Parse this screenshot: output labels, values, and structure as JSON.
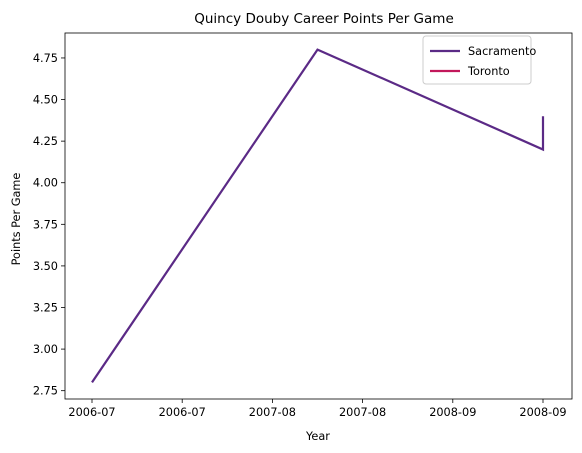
{
  "chart_data": {
    "type": "line",
    "title": "Quincy Douby Career Points Per Game",
    "xlabel": "Year",
    "ylabel": "Points Per Game",
    "x_tick_labels": [
      "2006-07",
      "2006-07",
      "2007-08",
      "2007-08",
      "2008-09",
      "2008-09"
    ],
    "y_tick_labels": [
      "2.75",
      "3.00",
      "3.25",
      "3.50",
      "3.75",
      "4.00",
      "4.25",
      "4.50",
      "4.75"
    ],
    "y_ticks": [
      2.75,
      3.0,
      3.25,
      3.5,
      3.75,
      4.0,
      4.25,
      4.5,
      4.75
    ],
    "ylim": [
      2.7,
      4.9
    ],
    "grid": false,
    "legend_position": "top-right",
    "series": [
      {
        "name": "Sacramento",
        "color": "#5b2a86",
        "x": [
          "2006-07",
          "2007-08",
          "2008-09",
          "2008-09"
        ],
        "y": [
          2.8,
          4.8,
          4.2,
          4.4
        ]
      },
      {
        "name": "Toronto",
        "color": "#c2185b",
        "x": [],
        "y": []
      }
    ]
  }
}
